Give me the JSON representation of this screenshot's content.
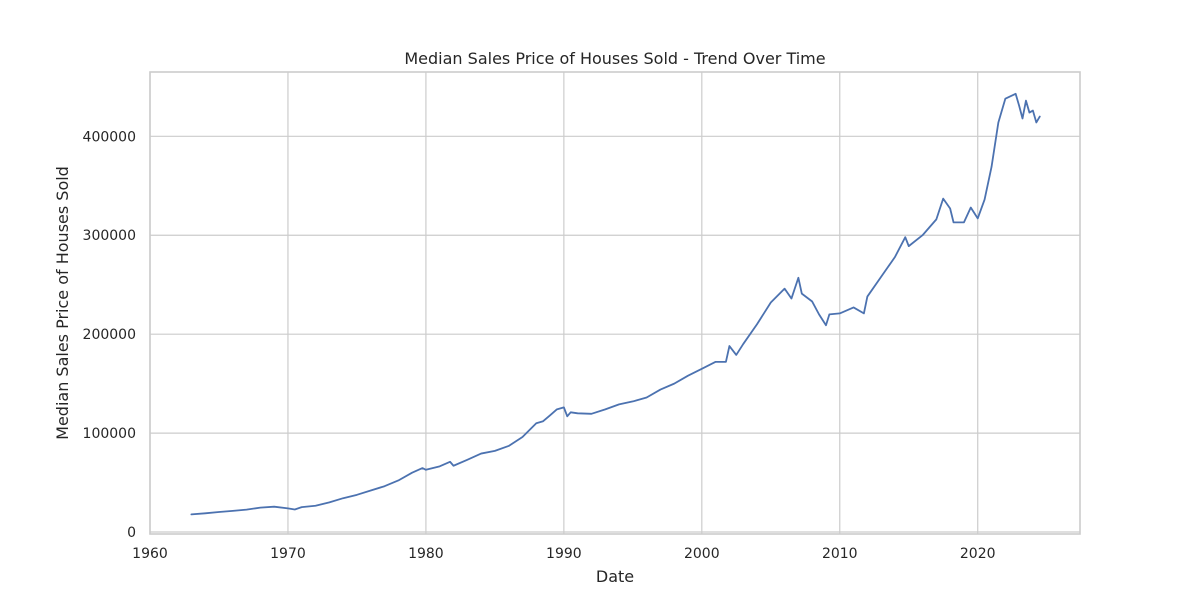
{
  "chart_data": {
    "type": "line",
    "title": "Median Sales Price of Houses Sold - Trend Over Time",
    "xlabel": "Date",
    "ylabel": "Median Sales Price of Houses Sold",
    "x_ticks": [
      "1960",
      "1970",
      "1980",
      "1990",
      "2000",
      "2010",
      "2020"
    ],
    "y_ticks": [
      "0",
      "100000",
      "200000",
      "300000",
      "400000"
    ],
    "xlim": [
      "1960-01-01",
      "2027-06-01"
    ],
    "ylim": [
      -2000,
      465000
    ],
    "grid": true,
    "legend": "none",
    "colors": {
      "line": "#4c72b0",
      "grid": "#cccccc",
      "text": "#262626"
    },
    "series": [
      {
        "points": [
          [
            "1963-01-01",
            17800
          ],
          [
            "1964-01-01",
            18900
          ],
          [
            "1965-01-01",
            20200
          ],
          [
            "1966-01-01",
            21400
          ],
          [
            "1967-01-01",
            22600
          ],
          [
            "1968-01-01",
            24700
          ],
          [
            "1969-01-01",
            25600
          ],
          [
            "1970-01-01",
            23900
          ],
          [
            "1970-07-01",
            22800
          ],
          [
            "1971-01-01",
            25200
          ],
          [
            "1972-01-01",
            26600
          ],
          [
            "1973-01-01",
            30000
          ],
          [
            "1974-01-01",
            34200
          ],
          [
            "1975-01-01",
            37600
          ],
          [
            "1976-01-01",
            42000
          ],
          [
            "1977-01-01",
            46300
          ],
          [
            "1978-01-01",
            52100
          ],
          [
            "1979-01-01",
            60000
          ],
          [
            "1979-10-01",
            64600
          ],
          [
            "1980-01-01",
            62900
          ],
          [
            "1981-01-01",
            66400
          ],
          [
            "1981-10-01",
            71000
          ],
          [
            "1982-01-01",
            67000
          ],
          [
            "1983-01-01",
            73000
          ],
          [
            "1984-01-01",
            79300
          ],
          [
            "1985-01-01",
            82000
          ],
          [
            "1986-01-01",
            87000
          ],
          [
            "1987-01-01",
            96000
          ],
          [
            "1988-01-01",
            110000
          ],
          [
            "1988-07-01",
            112000
          ],
          [
            "1989-01-01",
            118000
          ],
          [
            "1989-07-01",
            124000
          ],
          [
            "1990-01-01",
            126000
          ],
          [
            "1990-04-01",
            117000
          ],
          [
            "1990-07-01",
            121000
          ],
          [
            "1991-01-01",
            120000
          ],
          [
            "1992-01-01",
            119500
          ],
          [
            "1993-01-01",
            124000
          ],
          [
            "1994-01-01",
            129000
          ],
          [
            "1995-01-01",
            132000
          ],
          [
            "1996-01-01",
            136000
          ],
          [
            "1997-01-01",
            144000
          ],
          [
            "1998-01-01",
            150000
          ],
          [
            "1999-01-01",
            158000
          ],
          [
            "2000-01-01",
            165000
          ],
          [
            "2001-01-01",
            172000
          ],
          [
            "2001-10-01",
            172000
          ],
          [
            "2002-01-01",
            188000
          ],
          [
            "2002-07-01",
            179000
          ],
          [
            "2003-01-01",
            190000
          ],
          [
            "2004-01-01",
            210000
          ],
          [
            "2005-01-01",
            232000
          ],
          [
            "2006-01-01",
            246000
          ],
          [
            "2006-07-01",
            236000
          ],
          [
            "2007-01-01",
            257000
          ],
          [
            "2007-04-01",
            241000
          ],
          [
            "2008-01-01",
            233000
          ],
          [
            "2008-07-01",
            220000
          ],
          [
            "2009-01-01",
            209000
          ],
          [
            "2009-04-01",
            220000
          ],
          [
            "2010-01-01",
            221000
          ],
          [
            "2011-01-01",
            227000
          ],
          [
            "2011-10-01",
            221000
          ],
          [
            "2012-01-01",
            238000
          ],
          [
            "2013-01-01",
            258000
          ],
          [
            "2014-01-01",
            278000
          ],
          [
            "2014-10-01",
            298000
          ],
          [
            "2015-01-01",
            289000
          ],
          [
            "2016-01-01",
            300000
          ],
          [
            "2017-01-01",
            316000
          ],
          [
            "2017-07-01",
            337000
          ],
          [
            "2018-01-01",
            327000
          ],
          [
            "2018-04-01",
            313000
          ],
          [
            "2019-01-01",
            313000
          ],
          [
            "2019-07-01",
            328000
          ],
          [
            "2020-01-01",
            317000
          ],
          [
            "2020-07-01",
            336000
          ],
          [
            "2021-01-01",
            369000
          ],
          [
            "2021-07-01",
            414000
          ],
          [
            "2022-01-01",
            438000
          ],
          [
            "2022-10-01",
            443000
          ],
          [
            "2023-01-01",
            431000
          ],
          [
            "2023-04-01",
            418000
          ],
          [
            "2023-07-01",
            436000
          ],
          [
            "2023-10-01",
            424000
          ],
          [
            "2024-01-01",
            426000
          ],
          [
            "2024-04-01",
            414000
          ],
          [
            "2024-07-01",
            420000
          ]
        ]
      }
    ]
  }
}
